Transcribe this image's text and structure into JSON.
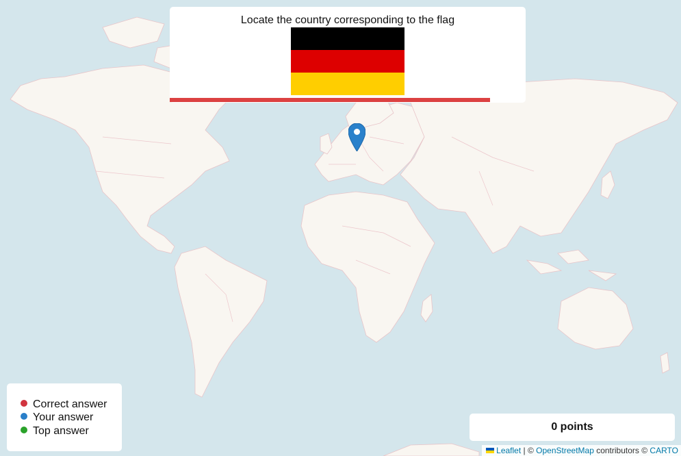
{
  "question": {
    "prompt": "Locate the country corresponding to the flag",
    "flag_stripes": [
      "#000000",
      "#dd0000",
      "#ffce00"
    ],
    "timer_color": "#dc4141"
  },
  "legend": {
    "items": [
      {
        "label": "Correct answer",
        "color": "#d1343f"
      },
      {
        "label": "Your answer",
        "color": "#2a7fc9"
      },
      {
        "label": "Top answer",
        "color": "#2aa22a"
      }
    ]
  },
  "score": {
    "text": "0 points"
  },
  "attribution": {
    "leaflet": "Leaflet",
    "sep1": " | © ",
    "osm": "OpenStreetMap",
    "mid": " contributors © ",
    "carto": "CARTO"
  },
  "marker": {
    "icon": "map-pin-icon",
    "color": "#2a81cb"
  }
}
